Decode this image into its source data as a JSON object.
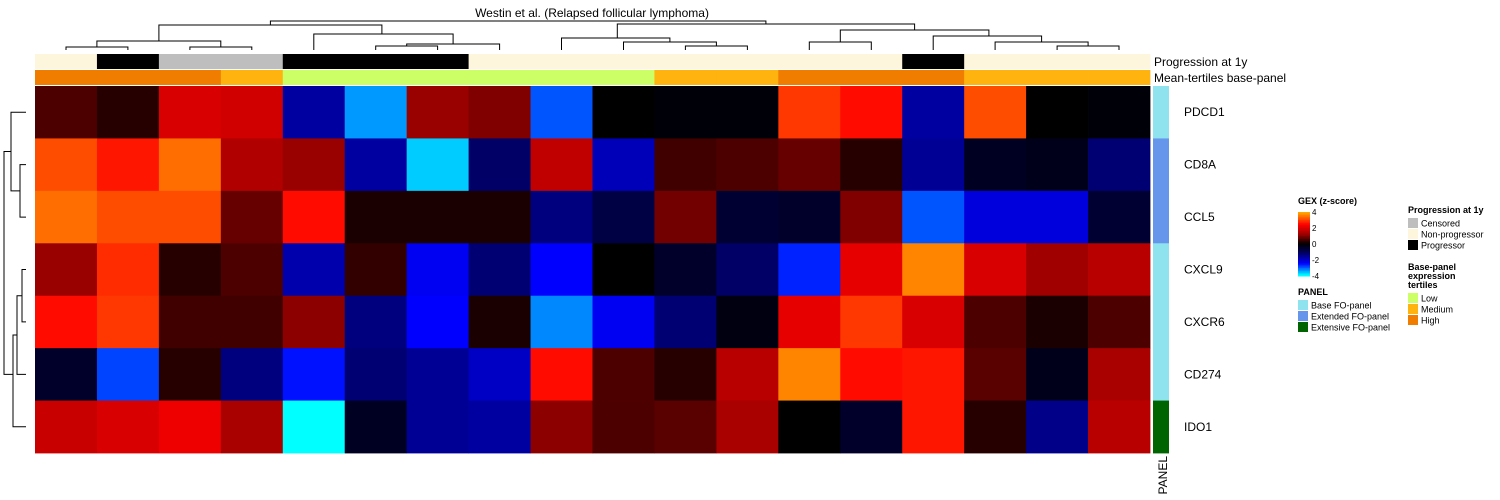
{
  "chart_data": {
    "type": "heatmap",
    "title": "Westin et al. (Relapsed follicular lymphoma)",
    "rows": [
      "PDCD1",
      "CD8A",
      "CCL5",
      "CXCL9",
      "CXCR6",
      "CD274",
      "IDO1"
    ],
    "row_panel": [
      "Base FO-panel",
      "Extended FO-panel",
      "Extended FO-panel",
      "Base FO-panel",
      "Base FO-panel",
      "Base FO-panel",
      "Extensive FO-panel"
    ],
    "panel_axis_label": "PANEL",
    "values": [
      [
        0.6,
        0.3,
        2.0,
        1.9,
        -1.7,
        -3.4,
        1.2,
        1.0,
        -3.0,
        0.0,
        -0.1,
        -0.1,
        3.0,
        2.6,
        -1.7,
        3.2,
        0.0,
        -0.1
      ],
      [
        3.2,
        2.7,
        3.5,
        1.5,
        1.2,
        -1.7,
        -3.7,
        -1.2,
        1.7,
        -1.9,
        0.5,
        0.6,
        0.8,
        0.3,
        -1.6,
        -0.4,
        -0.3,
        -1.3
      ],
      [
        3.5,
        3.2,
        3.2,
        0.8,
        2.6,
        0.2,
        0.2,
        0.2,
        -1.4,
        -0.8,
        0.9,
        -0.6,
        -0.5,
        1.0,
        -3.0,
        -2.2,
        -2.2,
        -0.6
      ],
      [
        1.2,
        2.9,
        0.3,
        0.6,
        -1.8,
        0.4,
        -2.4,
        -1.3,
        -2.5,
        0.0,
        -0.5,
        -1.2,
        -2.7,
        2.2,
        3.7,
        2.0,
        1.3,
        1.6
      ],
      [
        2.6,
        3.0,
        0.5,
        0.5,
        1.1,
        -1.4,
        -2.5,
        0.2,
        -3.3,
        -2.4,
        -1.3,
        -0.2,
        2.2,
        3.0,
        2.0,
        0.6,
        0.2,
        0.6
      ],
      [
        -0.5,
        -2.9,
        0.3,
        -1.4,
        -2.6,
        -1.3,
        -1.6,
        -2.0,
        2.6,
        0.6,
        0.3,
        1.6,
        3.7,
        2.6,
        2.7,
        0.7,
        -0.3,
        1.4
      ],
      [
        1.8,
        2.0,
        2.3,
        1.4,
        -4.0,
        -0.4,
        -1.6,
        -1.7,
        1.1,
        0.6,
        0.7,
        1.4,
        0.0,
        -0.5,
        2.7,
        0.3,
        -1.5,
        1.6
      ]
    ],
    "annotations": [
      {
        "name": "Progression at 1y",
        "values": [
          "Non-progressor",
          "Progressor",
          "Censored",
          "Censored",
          "Progressor",
          "Progressor",
          "Progressor",
          "Non-progressor",
          "Non-progressor",
          "Non-progressor",
          "Non-progressor",
          "Non-progressor",
          "Non-progressor",
          "Non-progressor",
          "Progressor",
          "Non-progressor",
          "Non-progressor",
          "Non-progressor"
        ]
      },
      {
        "name": "Mean-tertiles base-panel",
        "values": [
          "High",
          "High",
          "High",
          "Medium",
          "Low",
          "Low",
          "Low",
          "Low",
          "Low",
          "Low",
          "Medium",
          "Medium",
          "High",
          "High",
          "High",
          "Medium",
          "Medium",
          "Medium"
        ]
      }
    ],
    "color_scale": {
      "legend_title": "GEX (z-score)",
      "ticks": [
        4,
        2,
        0,
        -2,
        -4
      ],
      "tick_labels": [
        "4",
        "2",
        "0",
        "-2",
        "-4"
      ],
      "stops": [
        {
          "value": -4,
          "color": "#00ffff"
        },
        {
          "value": -2.5,
          "color": "#0000ff"
        },
        {
          "value": -1.2,
          "color": "#000066"
        },
        {
          "value": 0,
          "color": "#000000"
        },
        {
          "value": 1.2,
          "color": "#990000"
        },
        {
          "value": 2.5,
          "color": "#ff0000"
        },
        {
          "value": 4,
          "color": "#ffa500"
        }
      ]
    },
    "legends": [
      {
        "title": "PANEL",
        "items": [
          {
            "label": "Base FO-panel",
            "color": "#8fe3ee"
          },
          {
            "label": "Extended FO-panel",
            "color": "#6696ec"
          },
          {
            "label": "Extensive FO-panel",
            "color": "#006400"
          }
        ]
      },
      {
        "title": "Progression at 1y",
        "items": [
          {
            "label": "Censored",
            "color": "#bebebe"
          },
          {
            "label": "Non-progressor",
            "color": "#fdf5dc"
          },
          {
            "label": "Progressor",
            "color": "#000000"
          }
        ]
      },
      {
        "title": "Base-panel expression tertiles",
        "title_lines": [
          "Base-panel",
          "expression",
          "tertiles"
        ],
        "items": [
          {
            "label": "Low",
            "color": "#ccff66"
          },
          {
            "label": "Medium",
            "color": "#ffb30f"
          },
          {
            "label": "High",
            "color": "#f07d00"
          }
        ]
      }
    ],
    "column_dendrogram": true,
    "row_dendrogram": true,
    "grid": false
  }
}
